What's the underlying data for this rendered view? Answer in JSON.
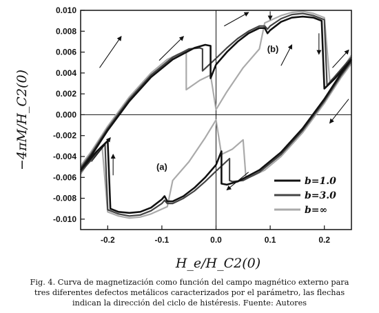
{
  "chart_data": {
    "type": "line",
    "title": "",
    "xlabel": "H_e/H_C2(0)",
    "ylabel": "−4πM/H_C2(0)",
    "xlim": [
      -0.25,
      0.25
    ],
    "ylim": [
      -0.011,
      0.01
    ],
    "x_ticks": [
      "-0.2",
      "-0.1",
      "0.0",
      "0.1",
      "0.2"
    ],
    "y_ticks": [
      "0.010",
      "0.008",
      "0.006",
      "0.004",
      "0.002",
      "0.000",
      "-0.002",
      "-0.004",
      "-0.006",
      "-0.008",
      "-0.010"
    ],
    "legend_position": "bottom-right",
    "annotations": [
      {
        "text": "(a)",
        "x": -0.1,
        "y": -0.0053
      },
      {
        "text": "(b)",
        "x": 0.105,
        "y": 0.006
      }
    ],
    "series": [
      {
        "name": "b=1.0",
        "color": "#111111",
        "upper_branch": [
          [
            -0.25,
            -0.0053
          ],
          [
            -0.23,
            -0.0039
          ],
          [
            -0.2,
            -0.0015
          ],
          [
            -0.16,
            0.0013
          ],
          [
            -0.12,
            0.0036
          ],
          [
            -0.08,
            0.0053
          ],
          [
            -0.04,
            0.0064
          ],
          [
            -0.02,
            0.0067
          ],
          [
            -0.01,
            0.0066
          ],
          [
            -0.01,
            0.0035
          ],
          [
            0.0,
            0.0048
          ],
          [
            0.02,
            0.006
          ],
          [
            0.04,
            0.007
          ],
          [
            0.06,
            0.0078
          ],
          [
            0.08,
            0.0083
          ],
          [
            0.09,
            0.0083
          ],
          [
            0.095,
            0.0078
          ],
          [
            0.1,
            0.0081
          ],
          [
            0.12,
            0.0089
          ],
          [
            0.14,
            0.0093
          ],
          [
            0.16,
            0.0094
          ],
          [
            0.18,
            0.0093
          ],
          [
            0.195,
            0.009
          ],
          [
            0.2,
            0.0025
          ],
          [
            0.22,
            0.0035
          ],
          [
            0.25,
            0.0053
          ]
        ],
        "lower_branch": [
          [
            0.25,
            0.0053
          ],
          [
            0.23,
            0.0039
          ],
          [
            0.2,
            0.0015
          ],
          [
            0.16,
            -0.0013
          ],
          [
            0.12,
            -0.0036
          ],
          [
            0.08,
            -0.0053
          ],
          [
            0.04,
            -0.0064
          ],
          [
            0.02,
            -0.0067
          ],
          [
            0.01,
            -0.0066
          ],
          [
            0.01,
            -0.0035
          ],
          [
            0.0,
            -0.0048
          ],
          [
            -0.02,
            -0.006
          ],
          [
            -0.04,
            -0.007
          ],
          [
            -0.06,
            -0.0078
          ],
          [
            -0.08,
            -0.0083
          ],
          [
            -0.09,
            -0.0083
          ],
          [
            -0.095,
            -0.0078
          ],
          [
            -0.1,
            -0.0081
          ],
          [
            -0.12,
            -0.0089
          ],
          [
            -0.14,
            -0.0093
          ],
          [
            -0.16,
            -0.0094
          ],
          [
            -0.18,
            -0.0093
          ],
          [
            -0.195,
            -0.009
          ],
          [
            -0.2,
            -0.0025
          ],
          [
            -0.22,
            -0.0035
          ],
          [
            -0.25,
            -0.0053
          ]
        ]
      },
      {
        "name": "b=3.0",
        "color": "#444444",
        "upper_branch": [
          [
            -0.25,
            -0.0051
          ],
          [
            -0.23,
            -0.0037
          ],
          [
            -0.2,
            -0.0013
          ],
          [
            -0.16,
            0.0015
          ],
          [
            -0.12,
            0.0038
          ],
          [
            -0.08,
            0.0055
          ],
          [
            -0.05,
            0.0063
          ],
          [
            -0.03,
            0.0064
          ],
          [
            -0.025,
            0.0063
          ],
          [
            -0.025,
            0.0042
          ],
          [
            0.0,
            0.0054
          ],
          [
            0.02,
            0.0064
          ],
          [
            0.04,
            0.0073
          ],
          [
            0.06,
            0.008
          ],
          [
            0.08,
            0.0085
          ],
          [
            0.09,
            0.0085
          ],
          [
            0.095,
            0.0082
          ],
          [
            0.1,
            0.0085
          ],
          [
            0.12,
            0.0092
          ],
          [
            0.14,
            0.0096
          ],
          [
            0.16,
            0.0097
          ],
          [
            0.18,
            0.0095
          ],
          [
            0.2,
            0.0091
          ],
          [
            0.205,
            0.0028
          ],
          [
            0.22,
            0.0037
          ],
          [
            0.25,
            0.0055
          ]
        ],
        "lower_branch": [
          [
            0.25,
            0.0051
          ],
          [
            0.23,
            0.0037
          ],
          [
            0.2,
            0.0013
          ],
          [
            0.16,
            -0.0015
          ],
          [
            0.12,
            -0.0038
          ],
          [
            0.08,
            -0.0055
          ],
          [
            0.05,
            -0.0063
          ],
          [
            0.03,
            -0.0064
          ],
          [
            0.025,
            -0.0063
          ],
          [
            0.025,
            -0.0042
          ],
          [
            0.0,
            -0.0054
          ],
          [
            -0.02,
            -0.0064
          ],
          [
            -0.04,
            -0.0073
          ],
          [
            -0.06,
            -0.008
          ],
          [
            -0.08,
            -0.0085
          ],
          [
            -0.09,
            -0.0085
          ],
          [
            -0.095,
            -0.0082
          ],
          [
            -0.1,
            -0.0085
          ],
          [
            -0.12,
            -0.0092
          ],
          [
            -0.14,
            -0.0096
          ],
          [
            -0.16,
            -0.0097
          ],
          [
            -0.18,
            -0.0095
          ],
          [
            -0.2,
            -0.0091
          ],
          [
            -0.205,
            -0.0028
          ],
          [
            -0.22,
            -0.0037
          ],
          [
            -0.25,
            -0.0055
          ]
        ]
      },
      {
        "name": "b=∞",
        "color": "#aaaaaa",
        "upper_branch": [
          [
            -0.25,
            -0.0049
          ],
          [
            -0.23,
            -0.0035
          ],
          [
            -0.2,
            -0.0011
          ],
          [
            -0.16,
            0.0017
          ],
          [
            -0.12,
            0.004
          ],
          [
            -0.09,
            0.0053
          ],
          [
            -0.07,
            0.0058
          ],
          [
            -0.06,
            0.006
          ],
          [
            -0.055,
            0.0059
          ],
          [
            -0.055,
            0.0024
          ],
          [
            -0.03,
            0.0033
          ],
          [
            -0.01,
            0.0038
          ],
          [
            0.0,
            0.0005
          ],
          [
            0.02,
            0.0022
          ],
          [
            0.05,
            0.0045
          ],
          [
            0.08,
            0.0063
          ],
          [
            0.09,
            0.0088
          ],
          [
            0.12,
            0.0095
          ],
          [
            0.14,
            0.0098
          ],
          [
            0.16,
            0.0099
          ],
          [
            0.18,
            0.0097
          ],
          [
            0.2,
            0.0093
          ],
          [
            0.21,
            0.0032
          ],
          [
            0.23,
            0.0041
          ],
          [
            0.25,
            0.0057
          ]
        ],
        "lower_branch": [
          [
            0.25,
            0.0049
          ],
          [
            0.23,
            0.0035
          ],
          [
            0.2,
            0.0011
          ],
          [
            0.16,
            -0.0017
          ],
          [
            0.12,
            -0.004
          ],
          [
            0.09,
            -0.0053
          ],
          [
            0.07,
            -0.0058
          ],
          [
            0.06,
            -0.006
          ],
          [
            0.055,
            -0.0059
          ],
          [
            0.05,
            -0.0024
          ],
          [
            0.03,
            -0.0033
          ],
          [
            0.01,
            -0.0038
          ],
          [
            0.0,
            -0.0005
          ],
          [
            -0.02,
            -0.0022
          ],
          [
            -0.05,
            -0.0045
          ],
          [
            -0.08,
            -0.0063
          ],
          [
            -0.09,
            -0.0088
          ],
          [
            -0.12,
            -0.0095
          ],
          [
            -0.14,
            -0.0098
          ],
          [
            -0.16,
            -0.0099
          ],
          [
            -0.18,
            -0.0097
          ],
          [
            -0.2,
            -0.0093
          ],
          [
            -0.21,
            -0.0032
          ],
          [
            -0.23,
            -0.0041
          ],
          [
            -0.25,
            -0.0057
          ]
        ]
      }
    ],
    "arrows": [
      {
        "from": [
          -0.215,
          0.0045
        ],
        "to": [
          -0.175,
          0.0075
        ]
      },
      {
        "from": [
          -0.23,
          -0.0045
        ],
        "to": [
          -0.195,
          -0.0022
        ]
      },
      {
        "from": [
          -0.105,
          0.0052
        ],
        "to": [
          -0.06,
          0.0075
        ]
      },
      {
        "from": [
          0.015,
          0.0085
        ],
        "to": [
          0.06,
          0.0098
        ]
      },
      {
        "from": [
          0.1,
          0.0099
        ],
        "to": [
          0.1,
          0.0091
        ]
      },
      {
        "from": [
          0.19,
          0.0078
        ],
        "to": [
          0.19,
          0.0058
        ]
      },
      {
        "from": [
          0.12,
          0.0047
        ],
        "to": [
          0.14,
          0.0067
        ]
      },
      {
        "from": [
          0.215,
          0.0045
        ],
        "to": [
          0.245,
          0.0062
        ]
      },
      {
        "from": [
          0.245,
          0.0015
        ],
        "to": [
          0.21,
          -0.0008
        ]
      },
      {
        "from": [
          0.06,
          -0.0055
        ],
        "to": [
          0.02,
          -0.0072
        ]
      },
      {
        "from": [
          -0.19,
          -0.0058
        ],
        "to": [
          -0.19,
          -0.0038
        ]
      }
    ]
  },
  "caption": [
    "Fig. 4. Curva de magnetización como función del campo magnético externo para",
    "tres diferentes defectos metálicos caracterizados por el parámetro, las flechas",
    "indican la dirección del ciclo de histéresis. Fuente: Autores"
  ]
}
